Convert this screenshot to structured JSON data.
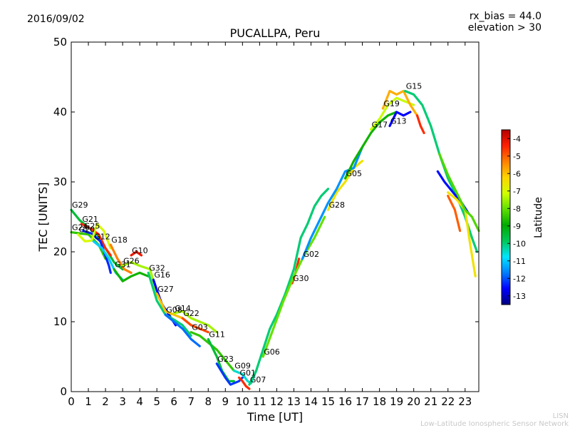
{
  "header": {
    "date": "2016/09/02",
    "title": "PUCALLPA, Peru",
    "rx_bias": "rx_bias = 44.0",
    "elevation": "elevation > 30"
  },
  "footer": {
    "line1": "LISN",
    "line2": "Low-Latitude Ionospheric Sensor Network"
  },
  "colorbar": {
    "label": "Latitude",
    "range": [
      -13.5,
      -3.5
    ],
    "ticks": [
      "-4",
      "-5",
      "-6",
      "-7",
      "-8",
      "-9",
      "-10",
      "-11",
      "-12",
      "-13"
    ],
    "colormap": [
      "#00007f",
      "#0000ff",
      "#007fff",
      "#00e5ff",
      "#00c85a",
      "#00aa00",
      "#5fe000",
      "#d0ff00",
      "#ffd500",
      "#ff8000",
      "#ff2000",
      "#b40000"
    ]
  },
  "chart_data": {
    "type": "scatter",
    "title": "PUCALLPA, Peru",
    "xlabel": "Time [UT]",
    "ylabel": "TEC [UNITS]",
    "xlim": [
      0,
      23.8
    ],
    "ylim": [
      0,
      50
    ],
    "xticks": [
      "0",
      "1",
      "2",
      "3",
      "4",
      "5",
      "6",
      "7",
      "8",
      "9",
      "10",
      "11",
      "12",
      "13",
      "14",
      "15",
      "16",
      "17",
      "18",
      "19",
      "20",
      "21",
      "22",
      "23"
    ],
    "yticks": [
      "0",
      "10",
      "20",
      "30",
      "40",
      "50"
    ],
    "grid": false,
    "color_by": "Latitude",
    "series": [
      {
        "name": "G29",
        "lat": -9.5,
        "points": [
          [
            0.0,
            26
          ],
          [
            0.5,
            24.5
          ],
          [
            1.0,
            23.5
          ],
          [
            1.5,
            22.5
          ],
          [
            2.0,
            20.5
          ],
          [
            2.5,
            18.5
          ],
          [
            3.0,
            17.5
          ]
        ]
      },
      {
        "name": "G21",
        "lat": -4.5,
        "points": [
          [
            0.6,
            24
          ],
          [
            1.2,
            23.2
          ],
          [
            1.6,
            22.5
          ],
          [
            2.0,
            20.5
          ],
          [
            2.3,
            19.5
          ]
        ]
      },
      {
        "name": "G24",
        "lat": -8.5,
        "points": [
          [
            0.0,
            22.8
          ],
          [
            0.6,
            22.6
          ],
          [
            1.0,
            22.5
          ],
          [
            1.6,
            21
          ],
          [
            2.0,
            19
          ]
        ]
      },
      {
        "name": "G25",
        "lat": -12.3,
        "points": [
          [
            0.7,
            23
          ],
          [
            1.2,
            22.6
          ],
          [
            1.7,
            21.5
          ],
          [
            2.2,
            18
          ],
          [
            2.3,
            17
          ]
        ]
      },
      {
        "name": "G20",
        "lat": -7.0,
        "points": [
          [
            0.4,
            22.5
          ],
          [
            0.8,
            21.5
          ],
          [
            1.2,
            21.6
          ],
          [
            1.5,
            24
          ],
          [
            1.9,
            23
          ],
          [
            2.3,
            20.5
          ]
        ]
      },
      {
        "name": "G12",
        "lat": -11.0,
        "points": [
          [
            1.3,
            21.5
          ],
          [
            1.8,
            20.5
          ],
          [
            2.2,
            19
          ],
          [
            2.6,
            17
          ],
          [
            3.0,
            16
          ]
        ]
      },
      {
        "name": "G18",
        "lat": -5.3,
        "points": [
          [
            2.3,
            21
          ],
          [
            2.7,
            19
          ],
          [
            3.1,
            17.5
          ],
          [
            3.5,
            17
          ]
        ]
      },
      {
        "name": "G31",
        "lat": -8.8,
        "points": [
          [
            2.5,
            17.5
          ],
          [
            3.0,
            15.8
          ],
          [
            3.5,
            16.5
          ],
          [
            4.0,
            17
          ],
          [
            4.5,
            16.5
          ]
        ]
      },
      {
        "name": "G10",
        "lat": -4.2,
        "points": [
          [
            3.5,
            19.5
          ],
          [
            3.8,
            20
          ],
          [
            4.1,
            19.5
          ]
        ]
      },
      {
        "name": "G26",
        "lat": -7.5,
        "points": [
          [
            3.0,
            18
          ],
          [
            3.5,
            18.5
          ],
          [
            4.0,
            18
          ],
          [
            4.6,
            17.5
          ],
          [
            5.0,
            14
          ],
          [
            5.4,
            12
          ],
          [
            5.8,
            11
          ]
        ]
      },
      {
        "name": "G16",
        "lat": -12.6,
        "points": [
          [
            4.8,
            16
          ],
          [
            5.0,
            14.5
          ],
          [
            5.3,
            12.5
          ],
          [
            5.7,
            11
          ],
          [
            6.1,
            9.5
          ]
        ]
      },
      {
        "name": "G32",
        "lat": -10.0,
        "points": [
          [
            4.5,
            17
          ],
          [
            5.0,
            13
          ],
          [
            5.5,
            11
          ],
          [
            6.0,
            10.3
          ],
          [
            6.5,
            9.5
          ],
          [
            7.0,
            8
          ]
        ]
      },
      {
        "name": "G27",
        "lat": -6.0,
        "points": [
          [
            5.0,
            14
          ],
          [
            5.5,
            11.5
          ],
          [
            6.0,
            11
          ],
          [
            6.5,
            10.5
          ],
          [
            7.0,
            9.5
          ],
          [
            7.5,
            9
          ]
        ]
      },
      {
        "name": "G14",
        "lat": -7.5,
        "points": [
          [
            6.0,
            11.2
          ],
          [
            6.5,
            11.5
          ],
          [
            7.0,
            10.5
          ],
          [
            7.5,
            10
          ],
          [
            8.0,
            9.5
          ],
          [
            8.5,
            8.5
          ]
        ]
      },
      {
        "name": "G22",
        "lat": -4.8,
        "points": [
          [
            6.5,
            10.5
          ],
          [
            7.0,
            9.5
          ],
          [
            7.5,
            9
          ],
          [
            8.0,
            8.5
          ]
        ]
      },
      {
        "name": "G08",
        "lat": -11.8,
        "points": [
          [
            5.5,
            11
          ],
          [
            6.0,
            10
          ],
          [
            6.5,
            9
          ],
          [
            7.0,
            7.5
          ],
          [
            7.5,
            6.5
          ]
        ]
      },
      {
        "name": "G03",
        "lat": -8.5,
        "points": [
          [
            7.0,
            8.5
          ],
          [
            7.5,
            8
          ],
          [
            8.0,
            7
          ],
          [
            8.5,
            6
          ],
          [
            9.0,
            4.5
          ],
          [
            9.5,
            3
          ]
        ]
      },
      {
        "name": "G11",
        "lat": -9.5,
        "points": [
          [
            8.0,
            7.5
          ],
          [
            8.5,
            5
          ],
          [
            8.8,
            3
          ],
          [
            9.2,
            1.5
          ],
          [
            9.5,
            1.5
          ]
        ]
      },
      {
        "name": "G23",
        "lat": -12.2,
        "points": [
          [
            8.5,
            4
          ],
          [
            9.0,
            2
          ],
          [
            9.3,
            1
          ],
          [
            9.8,
            1.5
          ],
          [
            10.0,
            2
          ]
        ]
      },
      {
        "name": "G09",
        "lat": -10.5,
        "points": [
          [
            9.5,
            3
          ],
          [
            10.0,
            2.5
          ],
          [
            10.3,
            1.5
          ],
          [
            10.5,
            1.2
          ],
          [
            10.8,
            3
          ]
        ]
      },
      {
        "name": "G01",
        "lat": -4.5,
        "points": [
          [
            9.8,
            2
          ],
          [
            10.0,
            1.5
          ],
          [
            10.2,
            0.8
          ],
          [
            10.4,
            0.4
          ]
        ]
      },
      {
        "name": "G07",
        "lat": -10.0,
        "points": [
          [
            10.4,
            1
          ],
          [
            10.8,
            3
          ],
          [
            11.2,
            6
          ],
          [
            11.6,
            9
          ],
          [
            12.0,
            11
          ],
          [
            12.5,
            14
          ],
          [
            13.0,
            17.5
          ],
          [
            13.4,
            22
          ],
          [
            13.8,
            24
          ],
          [
            14.2,
            26.5
          ],
          [
            14.6,
            28
          ],
          [
            15.0,
            29
          ]
        ]
      },
      {
        "name": "G30",
        "lat": -4.5,
        "points": [
          [
            12.9,
            15.5
          ],
          [
            13.1,
            17
          ],
          [
            13.3,
            19
          ]
        ]
      },
      {
        "name": "G06",
        "lat": -8.0,
        "points": [
          [
            11.2,
            5
          ],
          [
            11.8,
            9
          ],
          [
            12.4,
            13
          ],
          [
            13.0,
            16.5
          ],
          [
            13.6,
            19.5
          ],
          [
            14.2,
            22
          ],
          [
            14.8,
            25
          ]
        ]
      },
      {
        "name": "G28",
        "lat": -6.5,
        "points": [
          [
            15.0,
            26
          ],
          [
            15.5,
            28.5
          ],
          [
            16.0,
            30
          ],
          [
            16.5,
            32
          ],
          [
            17.0,
            33
          ]
        ]
      },
      {
        "name": "G02",
        "lat": -11.5,
        "points": [
          [
            13.5,
            19
          ],
          [
            14.0,
            22
          ],
          [
            14.5,
            24.5
          ],
          [
            15.0,
            27
          ],
          [
            15.5,
            29
          ],
          [
            16.0,
            31.5
          ],
          [
            16.5,
            32
          ],
          [
            17.0,
            35
          ]
        ]
      },
      {
        "name": "G05",
        "lat": -8.8,
        "points": [
          [
            16.0,
            30.5
          ],
          [
            16.5,
            33
          ],
          [
            17.0,
            35
          ],
          [
            17.5,
            37
          ],
          [
            18.0,
            38.5
          ],
          [
            18.5,
            39.5
          ],
          [
            19.0,
            40
          ]
        ]
      },
      {
        "name": "G17",
        "lat": -7.2,
        "points": [
          [
            17.5,
            37.5
          ],
          [
            18.0,
            39
          ],
          [
            18.5,
            41
          ],
          [
            19.0,
            42
          ],
          [
            19.5,
            41.5
          ],
          [
            20.0,
            41
          ]
        ]
      },
      {
        "name": "G19",
        "lat": -5.8,
        "points": [
          [
            18.2,
            40.5
          ],
          [
            18.6,
            43
          ],
          [
            19.0,
            42.5
          ],
          [
            19.4,
            43
          ],
          [
            19.8,
            41
          ],
          [
            20.2,
            39.5
          ]
        ]
      },
      {
        "name": "G13",
        "lat": -12.6,
        "points": [
          [
            18.6,
            38
          ],
          [
            19.0,
            40
          ],
          [
            19.4,
            39.5
          ],
          [
            19.8,
            40
          ]
        ]
      },
      {
        "name": "G15",
        "lat": -10.0,
        "points": [
          [
            19.5,
            43
          ],
          [
            20.0,
            42.5
          ],
          [
            20.5,
            41
          ],
          [
            21.0,
            38
          ],
          [
            21.5,
            34
          ],
          [
            22.0,
            30.5
          ],
          [
            22.5,
            28
          ],
          [
            23.0,
            25
          ],
          [
            23.4,
            22
          ],
          [
            23.7,
            20
          ]
        ]
      },
      {
        "name": "",
        "lat": -4.5,
        "points": [
          [
            20.2,
            39.5
          ],
          [
            20.4,
            38
          ],
          [
            20.6,
            37
          ]
        ]
      },
      {
        "name": "",
        "lat": -12.5,
        "points": [
          [
            21.4,
            31.5
          ],
          [
            21.8,
            30
          ],
          [
            22.3,
            28.5
          ],
          [
            22.8,
            27
          ],
          [
            23.2,
            25.5
          ]
        ]
      },
      {
        "name": "",
        "lat": -5.0,
        "points": [
          [
            22.0,
            28
          ],
          [
            22.4,
            26
          ],
          [
            22.7,
            23
          ]
        ]
      },
      {
        "name": "",
        "lat": -6.5,
        "points": [
          [
            22.0,
            28.5
          ],
          [
            22.5,
            27.5
          ],
          [
            23.0,
            26
          ],
          [
            23.3,
            21
          ],
          [
            23.6,
            16.5
          ]
        ]
      },
      {
        "name": "",
        "lat": -8.2,
        "points": [
          [
            21.5,
            34
          ],
          [
            22.0,
            31
          ],
          [
            22.5,
            28.5
          ],
          [
            23.0,
            26
          ],
          [
            23.4,
            25
          ],
          [
            23.8,
            23
          ]
        ]
      }
    ]
  }
}
